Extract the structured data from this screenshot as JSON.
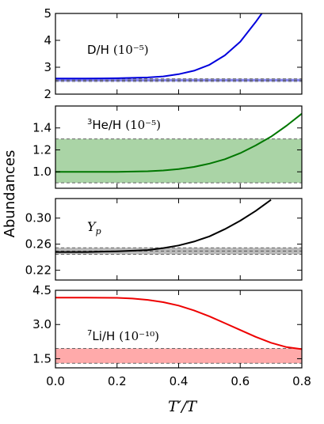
{
  "ylabel": "Abundances",
  "xlabel": "T′/T",
  "chart_data": [
    {
      "type": "line",
      "label_main": "D/H",
      "label_scale": "(10⁻⁵)",
      "ylim": [
        2,
        5
      ],
      "yticks": [
        "2",
        "3",
        "4",
        "5"
      ],
      "ytick_values": [
        2,
        3,
        4,
        5
      ],
      "xlim": [
        0,
        0.8
      ],
      "band": [
        2.47,
        2.57
      ],
      "band_center": 2.52,
      "band_color": "#8888ee",
      "line_color": "#0000dd",
      "x": [
        0.0,
        0.1,
        0.2,
        0.3,
        0.35,
        0.4,
        0.45,
        0.5,
        0.55,
        0.6,
        0.65,
        0.67
      ],
      "y": [
        2.58,
        2.58,
        2.59,
        2.62,
        2.66,
        2.74,
        2.87,
        3.09,
        3.44,
        3.95,
        4.68,
        5.0
      ]
    },
    {
      "type": "line",
      "label_main": "He/H",
      "label_sup": "3",
      "label_scale": "(10⁻⁵)",
      "ylim": [
        0.85,
        1.6
      ],
      "yticks": [
        "1.0",
        "1.2",
        "1.4"
      ],
      "ytick_values": [
        1.0,
        1.2,
        1.4
      ],
      "xlim": [
        0,
        0.8
      ],
      "band": [
        0.9,
        1.3
      ],
      "band_color": "#aad4a6",
      "line_color": "#007700",
      "x": [
        0.0,
        0.1,
        0.2,
        0.3,
        0.35,
        0.4,
        0.45,
        0.5,
        0.55,
        0.6,
        0.65,
        0.7,
        0.75,
        0.8
      ],
      "y": [
        1.0,
        1.0,
        1.0,
        1.005,
        1.012,
        1.025,
        1.045,
        1.075,
        1.115,
        1.17,
        1.24,
        1.32,
        1.42,
        1.53
      ]
    },
    {
      "type": "line",
      "label_main": "Y",
      "label_sub": "p",
      "ylim": [
        0.205,
        0.33
      ],
      "yticks": [
        "0.22",
        "0.26",
        "0.30"
      ],
      "ytick_values": [
        0.22,
        0.26,
        0.3
      ],
      "xlim": [
        0,
        0.8
      ],
      "band": [
        0.2445,
        0.2545
      ],
      "band_center": 0.2495,
      "band_color": "#bbbbbb",
      "line_color": "#000000",
      "x": [
        0.0,
        0.1,
        0.2,
        0.3,
        0.35,
        0.4,
        0.45,
        0.5,
        0.55,
        0.6,
        0.65,
        0.7
      ],
      "y": [
        0.248,
        0.248,
        0.249,
        0.251,
        0.254,
        0.258,
        0.264,
        0.272,
        0.283,
        0.296,
        0.311,
        0.328
      ]
    },
    {
      "type": "line",
      "label_main": "Li/H",
      "label_sup": "7",
      "label_scale": "(10⁻¹⁰)",
      "ylim": [
        1.1,
        4.5
      ],
      "yticks": [
        "1.5",
        "3.0",
        "4.5"
      ],
      "ytick_values": [
        1.5,
        3.0,
        4.5
      ],
      "xlim": [
        0,
        0.8
      ],
      "band": [
        1.3,
        1.95
      ],
      "band_color": "#ffaaaa",
      "line_color": "#ee0000",
      "x": [
        0.0,
        0.1,
        0.2,
        0.25,
        0.3,
        0.35,
        0.4,
        0.45,
        0.5,
        0.55,
        0.6,
        0.65,
        0.7,
        0.75,
        0.8
      ],
      "y": [
        4.18,
        4.18,
        4.17,
        4.14,
        4.08,
        3.98,
        3.83,
        3.62,
        3.36,
        3.06,
        2.76,
        2.46,
        2.2,
        2.01,
        1.92
      ]
    }
  ],
  "xticks": [
    "0.0",
    "0.2",
    "0.4",
    "0.6",
    "0.8"
  ],
  "xtick_values": [
    0.0,
    0.2,
    0.4,
    0.6,
    0.8
  ]
}
